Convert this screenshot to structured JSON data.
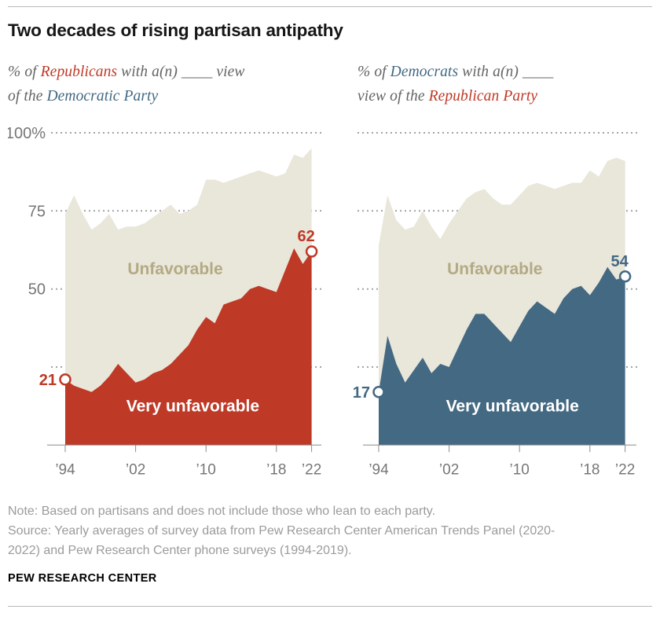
{
  "page": {
    "title": "Two decades of rising partisan antipathy",
    "note": "Note: Based on partisans and does not include those who lean to each party.",
    "source": "Source: Yearly averages of survey data from Pew Research Center American Trends Panel (2020-2022) and Pew Research Center phone surveys (1994-2019).",
    "wordmark": "PEW RESEARCH CENTER"
  },
  "colors": {
    "red": "#bf3927",
    "blue": "#436983",
    "beige": "#e9e6da",
    "beige_text": "#b3aa84",
    "gray_text": "#646464",
    "axis_text": "#767676",
    "axis_line": "#8c8c8c",
    "note_text": "#9b9b9b",
    "grid": "#a2a2a2",
    "title_text": "#161616",
    "white": "#ffffff"
  },
  "subtitles": {
    "left": {
      "lines": [
        [
          {
            "text": "% of ",
            "color": "gray"
          },
          {
            "text": "Republicans",
            "color": "red"
          },
          {
            "text": " with a(n) ____ view",
            "color": "gray"
          }
        ],
        [
          {
            "text": "of the ",
            "color": "gray"
          },
          {
            "text": "Democratic Party",
            "color": "blue"
          }
        ]
      ]
    },
    "right": {
      "lines": [
        [
          {
            "text": "% of ",
            "color": "gray"
          },
          {
            "text": "Democrats",
            "color": "blue"
          },
          {
            "text": " with a(n) ____",
            "color": "gray"
          }
        ],
        [
          {
            "text": "view of the ",
            "color": "gray"
          },
          {
            "text": "Republican Party",
            "color": "red"
          }
        ]
      ]
    }
  },
  "chart_data": [
    {
      "id": "republicans-view-of-democratic-party",
      "type": "area",
      "title": "% of Republicans with a(n) ____ view of the Democratic Party",
      "xlabel": "",
      "ylabel": "",
      "ylim": [
        0,
        100
      ],
      "grid": "dotted-horizontal",
      "years": [
        1994,
        1995,
        1996,
        1997,
        1998,
        1999,
        2000,
        2001,
        2002,
        2003,
        2004,
        2005,
        2006,
        2007,
        2008,
        2009,
        2010,
        2011,
        2012,
        2013,
        2014,
        2015,
        2016,
        2017,
        2018,
        2019,
        2020,
        2021,
        2022
      ],
      "series": [
        {
          "name": "Unfavorable",
          "color_key": "beige",
          "values": [
            74,
            80,
            74,
            69,
            71,
            74,
            69,
            70,
            70,
            71,
            73,
            75,
            77,
            74,
            75,
            77,
            85,
            85,
            84,
            85,
            86,
            87,
            88,
            87,
            86,
            87,
            93,
            92,
            95
          ]
        },
        {
          "name": "Very unfavorable",
          "color_key": "red",
          "values": [
            21,
            19,
            18,
            17,
            19,
            22,
            26,
            23,
            20,
            21,
            23,
            24,
            26,
            29,
            32,
            37,
            41,
            39,
            45,
            46,
            47,
            50,
            51,
            50,
            49,
            56,
            63,
            58,
            62
          ]
        }
      ],
      "x_ticks": [
        {
          "year": 1994,
          "label": "’94"
        },
        {
          "year": 2002,
          "label": "’02"
        },
        {
          "year": 2010,
          "label": "’10"
        },
        {
          "year": 2018,
          "label": "’18"
        },
        {
          "year": 2022,
          "label": "’22"
        }
      ],
      "y_ticks": [
        {
          "value": 100,
          "label": "100%"
        },
        {
          "value": 75,
          "label": "75"
        },
        {
          "value": 50,
          "label": "50"
        },
        {
          "value": 25,
          "label": ""
        }
      ],
      "area_labels": [
        {
          "text": "Unfavorable",
          "year": 2006.5,
          "value": 56.5,
          "style": "beige"
        },
        {
          "text": "Very unfavorable",
          "year": 2008.5,
          "value": 12.5,
          "style": "white"
        }
      ],
      "point_labels": [
        {
          "label": "21",
          "year": 1994,
          "value": 21,
          "placement": "left"
        },
        {
          "label": "62",
          "year": 2022,
          "value": 62,
          "placement": "above"
        }
      ]
    },
    {
      "id": "democrats-view-of-republican-party",
      "type": "area",
      "title": "% of Democrats with a(n) ____ view of the Republican Party",
      "xlabel": "",
      "ylabel": "",
      "ylim": [
        0,
        100
      ],
      "grid": "dotted-horizontal",
      "years": [
        1994,
        1995,
        1996,
        1997,
        1998,
        1999,
        2000,
        2001,
        2002,
        2003,
        2004,
        2005,
        2006,
        2007,
        2008,
        2009,
        2010,
        2011,
        2012,
        2013,
        2014,
        2015,
        2016,
        2017,
        2018,
        2019,
        2020,
        2021,
        2022
      ],
      "series": [
        {
          "name": "Unfavorable",
          "color_key": "beige",
          "values": [
            64,
            80,
            72,
            69,
            70,
            75,
            70,
            66,
            71,
            75,
            79,
            81,
            82,
            79,
            77,
            77,
            80,
            83,
            84,
            83,
            82,
            83,
            84,
            84,
            88,
            86,
            91,
            92,
            91
          ]
        },
        {
          "name": "Very unfavorable",
          "color_key": "blue",
          "values": [
            17,
            35,
            26,
            20,
            24,
            28,
            23,
            26,
            25,
            31,
            37,
            42,
            42,
            39,
            36,
            33,
            38,
            43,
            46,
            44,
            42,
            47,
            50,
            51,
            48,
            52,
            57,
            53,
            54
          ]
        }
      ],
      "x_ticks": [
        {
          "year": 1994,
          "label": "’94"
        },
        {
          "year": 2002,
          "label": "’02"
        },
        {
          "year": 2010,
          "label": "’10"
        },
        {
          "year": 2018,
          "label": "’18"
        },
        {
          "year": 2022,
          "label": "’22"
        }
      ],
      "y_ticks": [
        {
          "value": 100,
          "label": ""
        },
        {
          "value": 75,
          "label": ""
        },
        {
          "value": 50,
          "label": ""
        },
        {
          "value": 25,
          "label": ""
        }
      ],
      "area_labels": [
        {
          "text": "Unfavorable",
          "year": 2007.2,
          "value": 56.5,
          "style": "beige"
        },
        {
          "text": "Very unfavorable",
          "year": 2009.2,
          "value": 12.5,
          "style": "white"
        }
      ],
      "point_labels": [
        {
          "label": "17",
          "year": 1994,
          "value": 17,
          "placement": "left"
        },
        {
          "label": "54",
          "year": 2022,
          "value": 54,
          "placement": "above"
        }
      ]
    }
  ]
}
